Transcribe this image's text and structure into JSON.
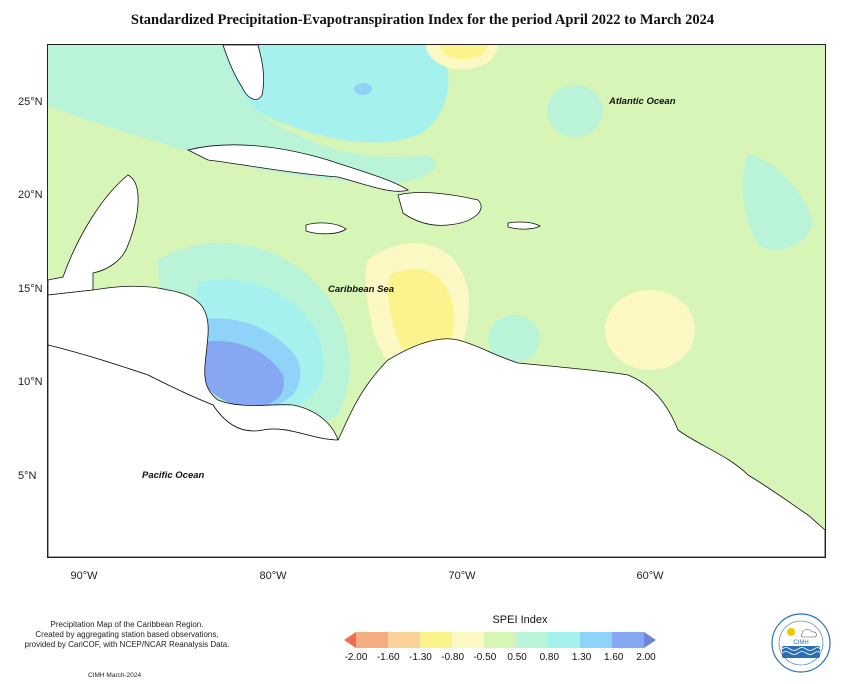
{
  "title": "Standardized Precipitation-Evapotranspiration Index for the period April 2022 to March 2024",
  "latitude_labels": [
    "25°N",
    "20°N",
    "15°N",
    "10°N",
    "5°N"
  ],
  "longitude_labels": [
    "90°W",
    "80°W",
    "70°W",
    "60°W"
  ],
  "ocean_labels": {
    "atlantic": "Atlantic Ocean",
    "caribbean": "Caribbean Sea",
    "pacific": "Pacific Ocean"
  },
  "footnote": {
    "line1": "Precipitation Map of the Caribbean Region.",
    "line2": "Created by aggregating station based observations,",
    "line3": "provided by CariCOF, with NCEP/NCAR Reanalysis Data."
  },
  "credit": "CIMH March-2024",
  "legend": {
    "title": "SPEI Index",
    "ticks": [
      "-2.00",
      "-1.60",
      "-1.30",
      "-0.80",
      "-0.50",
      "0.50",
      "0.80",
      "1.30",
      "1.60",
      "2.00"
    ],
    "colors": [
      "#f26a52",
      "#f5ac82",
      "#f9d39a",
      "#fbf48c",
      "#fbf8c4",
      "#d8f5b8",
      "#b9f4d8",
      "#a4f1ee",
      "#8fd3f8",
      "#86a8f2",
      "#6f83d8"
    ]
  },
  "logo": {
    "text": "CIMH"
  }
}
